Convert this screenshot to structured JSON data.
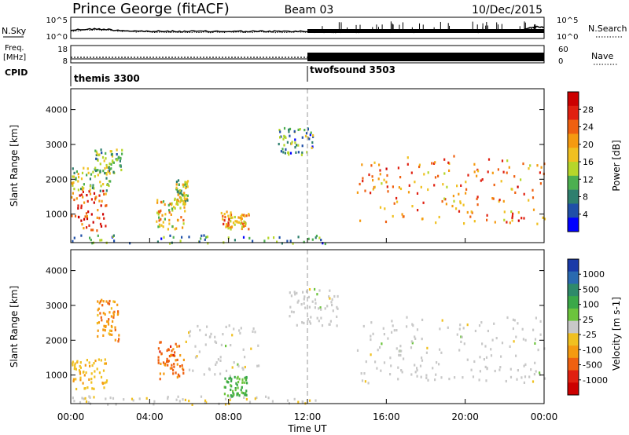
{
  "header": {
    "station": "Prince George (fitACF)",
    "beam": "Beam 03",
    "date": "10/Dec/2015"
  },
  "strips": {
    "nsky_label": "N.Sky",
    "nsearch_label": "N.Search",
    "freq_label_1": "Freq.",
    "freq_label_2": "[MHz]",
    "nave_label": "Nave",
    "cpid_label": "CPID",
    "noise_ticks_left": [
      "10^5",
      "10^0"
    ],
    "noise_ticks_right": [
      "10^5",
      "10^0"
    ],
    "freq_ticks": [
      "18",
      "8"
    ],
    "nave_ticks": [
      "60",
      "0"
    ],
    "cpid_segments": [
      {
        "name": "themis 3300",
        "start_hour": 0
      },
      {
        "name": "twofsound 3503",
        "start_hour": 12
      }
    ]
  },
  "axes": {
    "ylabel": "Slant Range [km]",
    "xlabel": "Time UT",
    "y_ticks": [
      "4000",
      "3000",
      "2000",
      "1000"
    ],
    "x_ticks": [
      "00:00",
      "04:00",
      "08:00",
      "12:00",
      "16:00",
      "20:00",
      "00:00"
    ]
  },
  "power_scale": {
    "label": "Power [dB]",
    "ticks": [
      "28",
      "24",
      "20",
      "16",
      "12",
      "8",
      "4"
    ],
    "colors": [
      "#0000ff",
      "#1f4fa8",
      "#2e7f6e",
      "#4caf50",
      "#b6d62a",
      "#f0c020",
      "#f59a10",
      "#ef6010",
      "#e02010",
      "#cc0000"
    ]
  },
  "velocity_scale": {
    "label": "Velocity [m s-1]",
    "ticks": [
      "1000",
      "500",
      "100",
      "25",
      "-25",
      "-100",
      "-500",
      "-1000"
    ],
    "colors": [
      "#1a3aa8",
      "#2a6ab0",
      "#2e8a6a",
      "#3aa848",
      "#6cc43c",
      "#c8c8c8",
      "#f0c020",
      "#f59a10",
      "#ef6010",
      "#e02010",
      "#cc0000"
    ]
  },
  "chart_data": [
    {
      "type": "heatmap",
      "title": "",
      "ylabel": "Slant Range [km]",
      "xlabel": "",
      "x_range_hours": [
        0,
        24
      ],
      "ylim": [
        180,
        4600
      ],
      "colorbar": "Power [dB]",
      "colorbar_range": [
        0,
        32
      ],
      "echo_regions": [
        {
          "t0": 0.0,
          "t1": 1.8,
          "r0": 550,
          "r1": 1700,
          "value": 26
        },
        {
          "t0": 0.0,
          "t1": 2.0,
          "r0": 1700,
          "r1": 2400,
          "value": 14
        },
        {
          "t0": 1.2,
          "t1": 2.6,
          "r0": 2200,
          "r1": 2900,
          "value": 12
        },
        {
          "t0": 4.3,
          "t1": 5.8,
          "r0": 600,
          "r1": 1500,
          "value": 18
        },
        {
          "t0": 5.3,
          "t1": 5.9,
          "r0": 1300,
          "r1": 2000,
          "value": 14
        },
        {
          "t0": 7.6,
          "t1": 9.0,
          "r0": 600,
          "r1": 1100,
          "value": 20
        },
        {
          "t0": 10.5,
          "t1": 12.3,
          "r0": 2700,
          "r1": 3500,
          "value": 10
        },
        {
          "t0": 14.5,
          "t1": 24.0,
          "r0": 750,
          "r1": 2700,
          "value": 22
        },
        {
          "t0": 0.0,
          "t1": 13.0,
          "r0": 180,
          "r1": 420,
          "value": 9
        }
      ]
    },
    {
      "type": "heatmap",
      "title": "",
      "ylabel": "Slant Range [km]",
      "xlabel": "Time UT",
      "x_range_hours": [
        0,
        24
      ],
      "ylim": [
        180,
        4600
      ],
      "colorbar": "Velocity [m s-1]",
      "colorbar_range": [
        -1000,
        1000
      ],
      "echo_regions": [
        {
          "t0": 0.0,
          "t1": 1.8,
          "r0": 550,
          "r1": 1500,
          "value": -250
        },
        {
          "t0": 1.3,
          "t1": 2.4,
          "r0": 2000,
          "r1": 3200,
          "value": -400
        },
        {
          "t0": 4.4,
          "t1": 5.7,
          "r0": 900,
          "r1": 2000,
          "value": -500
        },
        {
          "t0": 5.8,
          "t1": 9.5,
          "r0": 1000,
          "r1": 2500,
          "value": 0
        },
        {
          "t0": 7.7,
          "t1": 8.9,
          "r0": 400,
          "r1": 1000,
          "value": 300
        },
        {
          "t0": 11.0,
          "t1": 13.5,
          "r0": 2400,
          "r1": 3500,
          "value": 0
        },
        {
          "t0": 14.5,
          "t1": 24.0,
          "r0": 800,
          "r1": 2700,
          "value": 0
        },
        {
          "t0": 0.0,
          "t1": 13.0,
          "r0": 180,
          "r1": 420,
          "value": -60
        }
      ]
    }
  ]
}
